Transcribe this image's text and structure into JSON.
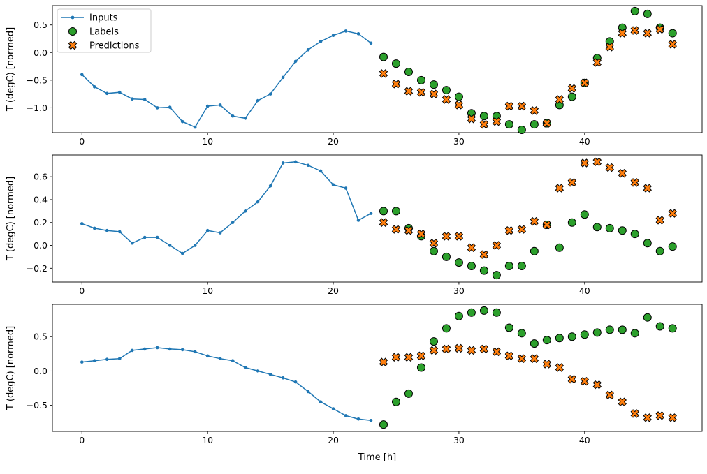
{
  "figure": {
    "xlabel": "Time [h]",
    "ylabel": "T (degC) [normed]",
    "background": "#ffffff",
    "colors": {
      "inputs": "#1f77b4",
      "labels": "#2ca02c",
      "predictions": "#ff7f0e",
      "marker_edge": "#000000"
    },
    "legend": [
      {
        "label": "Inputs",
        "marker": "line-dot",
        "color": "#1f77b4"
      },
      {
        "label": "Labels",
        "marker": "circle",
        "color": "#2ca02c"
      },
      {
        "label": "Predictions",
        "marker": "x",
        "color": "#ff7f0e"
      }
    ]
  },
  "chart_data": [
    {
      "type": "line",
      "title": "",
      "ylabel": "T (degC) [normed]",
      "xlabel": "",
      "xlim": [
        -2.35,
        49.35
      ],
      "ylim": [
        -1.45,
        0.85
      ],
      "xticks": [
        0,
        10,
        20,
        30,
        40
      ],
      "yticks": [
        0.5,
        0.0,
        -0.5,
        -1.0
      ],
      "grid": false,
      "legend": true,
      "legend_position": "upper-left",
      "series": [
        {
          "name": "Inputs",
          "plot": "line",
          "marker": "point",
          "color": "#1f77b4",
          "x": [
            0,
            1,
            2,
            3,
            4,
            5,
            6,
            7,
            8,
            9,
            10,
            11,
            12,
            13,
            14,
            15,
            16,
            17,
            18,
            19,
            20,
            21,
            22,
            23
          ],
          "y": [
            -0.4,
            -0.62,
            -0.74,
            -0.72,
            -0.84,
            -0.85,
            -1.0,
            -0.99,
            -1.25,
            -1.35,
            -0.97,
            -0.95,
            -1.15,
            -1.19,
            -0.87,
            -0.75,
            -0.45,
            -0.16,
            0.05,
            0.2,
            0.31,
            0.39,
            0.34,
            0.17
          ]
        },
        {
          "name": "Labels",
          "plot": "scatter",
          "marker": "circle",
          "color": "#2ca02c",
          "x": [
            24,
            25,
            26,
            27,
            28,
            29,
            30,
            31,
            32,
            33,
            34,
            35,
            36,
            37,
            38,
            39,
            40,
            41,
            42,
            43,
            44,
            45,
            46,
            47
          ],
          "y": [
            -0.08,
            -0.2,
            -0.35,
            -0.5,
            -0.58,
            -0.68,
            -0.8,
            -1.1,
            -1.15,
            -1.15,
            -1.3,
            -1.4,
            -1.3,
            -1.28,
            -0.95,
            -0.8,
            -0.55,
            -0.1,
            0.2,
            0.45,
            0.75,
            0.7,
            0.45,
            0.35
          ]
        },
        {
          "name": "Predictions",
          "plot": "scatter",
          "marker": "X",
          "color": "#ff7f0e",
          "x": [
            24,
            25,
            26,
            27,
            28,
            29,
            30,
            31,
            32,
            33,
            34,
            35,
            36,
            37,
            38,
            39,
            40,
            41,
            42,
            43,
            44,
            45,
            46,
            47
          ],
          "y": [
            -0.38,
            -0.57,
            -0.7,
            -0.72,
            -0.75,
            -0.85,
            -0.95,
            -1.2,
            -1.3,
            -1.25,
            -0.97,
            -0.97,
            -1.05,
            -1.28,
            -0.85,
            -0.65,
            -0.55,
            -0.18,
            0.1,
            0.35,
            0.4,
            0.35,
            0.42,
            0.15
          ]
        }
      ]
    },
    {
      "type": "line",
      "title": "",
      "ylabel": "T (degC) [normed]",
      "xlabel": "",
      "xlim": [
        -2.35,
        49.35
      ],
      "ylim": [
        -0.32,
        0.79
      ],
      "xticks": [
        0,
        10,
        20,
        30,
        40
      ],
      "yticks": [
        0.6,
        0.4,
        0.2,
        0.0,
        -0.2
      ],
      "grid": false,
      "legend": false,
      "series": [
        {
          "name": "Inputs",
          "plot": "line",
          "marker": "point",
          "color": "#1f77b4",
          "x": [
            0,
            1,
            2,
            3,
            4,
            5,
            6,
            7,
            8,
            9,
            10,
            11,
            12,
            13,
            14,
            15,
            16,
            17,
            18,
            19,
            20,
            21,
            22,
            23
          ],
          "y": [
            0.19,
            0.15,
            0.13,
            0.12,
            0.02,
            0.07,
            0.07,
            0.0,
            -0.07,
            0.0,
            0.13,
            0.11,
            0.2,
            0.3,
            0.38,
            0.52,
            0.72,
            0.73,
            0.7,
            0.65,
            0.53,
            0.5,
            0.22,
            0.28
          ]
        },
        {
          "name": "Labels",
          "plot": "scatter",
          "marker": "circle",
          "color": "#2ca02c",
          "x": [
            24,
            25,
            26,
            27,
            28,
            29,
            30,
            31,
            32,
            33,
            34,
            35,
            36,
            37,
            38,
            39,
            40,
            41,
            42,
            43,
            44,
            45,
            46,
            47
          ],
          "y": [
            0.3,
            0.3,
            0.15,
            0.08,
            -0.05,
            -0.1,
            -0.15,
            -0.18,
            -0.22,
            -0.26,
            -0.18,
            -0.18,
            -0.05,
            0.18,
            -0.02,
            0.2,
            0.27,
            0.16,
            0.15,
            0.13,
            0.1,
            0.02,
            -0.05,
            -0.01
          ]
        },
        {
          "name": "Predictions",
          "plot": "scatter",
          "marker": "X",
          "color": "#ff7f0e",
          "x": [
            24,
            25,
            26,
            27,
            28,
            29,
            30,
            31,
            32,
            33,
            34,
            35,
            36,
            37,
            38,
            39,
            40,
            41,
            42,
            43,
            44,
            45,
            46,
            47
          ],
          "y": [
            0.2,
            0.14,
            0.13,
            0.1,
            0.02,
            0.08,
            0.08,
            -0.02,
            -0.08,
            0.0,
            0.13,
            0.14,
            0.21,
            0.18,
            0.5,
            0.55,
            0.72,
            0.73,
            0.68,
            0.63,
            0.55,
            0.5,
            0.22,
            0.28
          ]
        }
      ]
    },
    {
      "type": "line",
      "title": "",
      "ylabel": "T (degC) [normed]",
      "xlabel": "Time [h]",
      "xlim": [
        -2.35,
        49.35
      ],
      "ylim": [
        -0.88,
        0.97
      ],
      "xticks": [
        0,
        10,
        20,
        30,
        40
      ],
      "yticks": [
        0.5,
        0.0,
        -0.5
      ],
      "grid": false,
      "legend": false,
      "series": [
        {
          "name": "Inputs",
          "plot": "line",
          "marker": "point",
          "color": "#1f77b4",
          "x": [
            0,
            1,
            2,
            3,
            4,
            5,
            6,
            7,
            8,
            9,
            10,
            11,
            12,
            13,
            14,
            15,
            16,
            17,
            18,
            19,
            20,
            21,
            22,
            23
          ],
          "y": [
            0.13,
            0.15,
            0.17,
            0.18,
            0.3,
            0.32,
            0.34,
            0.32,
            0.31,
            0.28,
            0.22,
            0.18,
            0.15,
            0.05,
            0.0,
            -0.05,
            -0.1,
            -0.16,
            -0.3,
            -0.45,
            -0.55,
            -0.65,
            -0.7,
            -0.72
          ]
        },
        {
          "name": "Labels",
          "plot": "scatter",
          "marker": "circle",
          "color": "#2ca02c",
          "x": [
            24,
            25,
            26,
            27,
            28,
            29,
            30,
            31,
            32,
            33,
            34,
            35,
            36,
            37,
            38,
            39,
            40,
            41,
            42,
            43,
            44,
            45,
            46,
            47
          ],
          "y": [
            -0.78,
            -0.45,
            -0.33,
            0.05,
            0.43,
            0.62,
            0.8,
            0.85,
            0.88,
            0.85,
            0.63,
            0.55,
            0.4,
            0.45,
            0.48,
            0.5,
            0.53,
            0.56,
            0.6,
            0.6,
            0.55,
            0.78,
            0.65,
            0.62
          ]
        },
        {
          "name": "Predictions",
          "plot": "scatter",
          "marker": "X",
          "color": "#ff7f0e",
          "x": [
            24,
            25,
            26,
            27,
            28,
            29,
            30,
            31,
            32,
            33,
            34,
            35,
            36,
            37,
            38,
            39,
            40,
            41,
            42,
            43,
            44,
            45,
            46,
            47
          ],
          "y": [
            0.13,
            0.2,
            0.2,
            0.22,
            0.3,
            0.32,
            0.33,
            0.3,
            0.32,
            0.28,
            0.22,
            0.18,
            0.18,
            0.1,
            0.05,
            -0.12,
            -0.15,
            -0.2,
            -0.35,
            -0.45,
            -0.62,
            -0.68,
            -0.65,
            -0.68
          ]
        }
      ]
    }
  ]
}
